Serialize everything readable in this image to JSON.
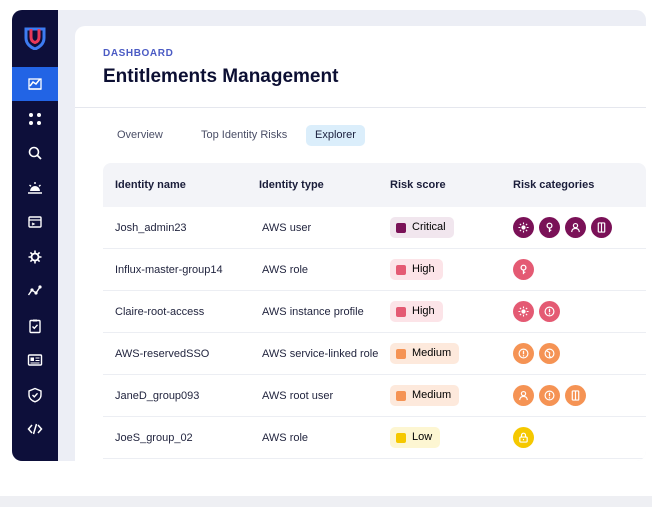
{
  "header": {
    "breadcrumb": "DASHBOARD",
    "title": "Entitlements Management"
  },
  "sidebar": {
    "items": [
      {
        "icon": "chart-icon",
        "active": true
      },
      {
        "icon": "apps-grid-icon",
        "active": false
      },
      {
        "icon": "search-icon",
        "active": false
      },
      {
        "icon": "sunrise-icon",
        "active": false
      },
      {
        "icon": "terminal-window-icon",
        "active": false
      },
      {
        "icon": "gear-icon",
        "active": false
      },
      {
        "icon": "graph-nodes-icon",
        "active": false
      },
      {
        "icon": "clipboard-check-icon",
        "active": false
      },
      {
        "icon": "id-card-icon",
        "active": false
      },
      {
        "icon": "shield-check-icon",
        "active": false
      },
      {
        "icon": "code-icon",
        "active": false
      }
    ]
  },
  "tabs": [
    {
      "label": "Overview",
      "active": false
    },
    {
      "label": "Top Identity Risks",
      "active": false
    },
    {
      "label": "Explorer",
      "active": true
    }
  ],
  "table": {
    "columns": [
      "Identity name",
      "Identity type",
      "Risk score",
      "Risk categories"
    ],
    "rows": [
      {
        "name": "Josh_admin23",
        "type": "AWS user",
        "score": "Critical",
        "categories": [
          "sun-gear-icon",
          "key-icon",
          "user-icon",
          "door-icon"
        ]
      },
      {
        "name": "Influx-master-group14",
        "type": "AWS role",
        "score": "High",
        "categories": [
          "key-icon"
        ]
      },
      {
        "name": "Claire-root-access",
        "type": "AWS instance profile",
        "score": "High",
        "categories": [
          "sun-gear-icon",
          "alert-icon"
        ]
      },
      {
        "name": "AWS-reservedSSO",
        "type": "AWS service-linked role",
        "score": "Medium",
        "categories": [
          "alert-icon",
          "globe-icon"
        ]
      },
      {
        "name": "JaneD_group093",
        "type": "AWS root user",
        "score": "Medium",
        "categories": [
          "user-icon",
          "alert-icon",
          "door-icon"
        ]
      },
      {
        "name": "JoeS_group_02",
        "type": "AWS role",
        "score": "Low",
        "categories": [
          "lock-icon"
        ]
      }
    ]
  },
  "colors": {
    "Critical": {
      "badge_bg": "#f1e6ee",
      "square": "#7a1157",
      "icon": "#7a1157"
    },
    "High": {
      "badge_bg": "#fce4e8",
      "square": "#e45a73",
      "icon": "#e45a73"
    },
    "Medium": {
      "badge_bg": "#fde9dc",
      "square": "#f59354",
      "icon": "#f59354"
    },
    "Low": {
      "badge_bg": "#fdf6d2",
      "square": "#f5c800",
      "icon": "#f5c800"
    },
    "sidebar_bg": "#0d0f3a",
    "sidebar_active": "#2264e5",
    "accent": "#4b5bc4"
  }
}
